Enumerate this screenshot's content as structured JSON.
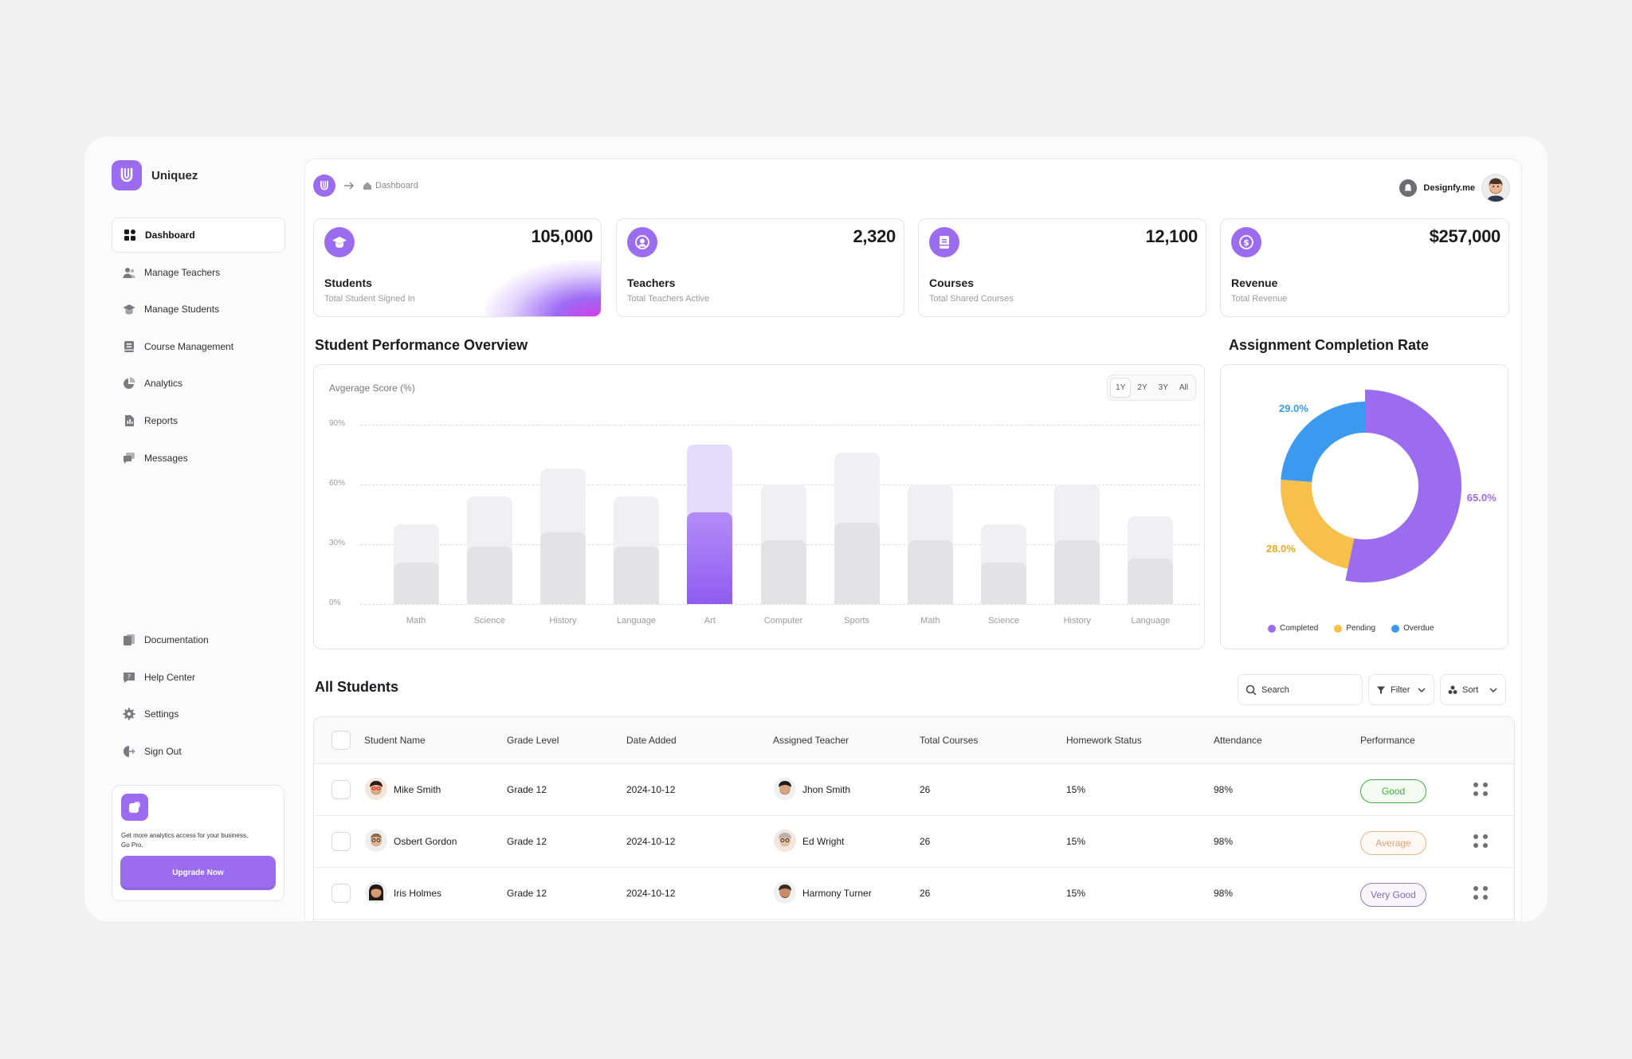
{
  "app": {
    "name": "Uniquez"
  },
  "sidebar": {
    "items": [
      {
        "label": "Dashboard",
        "icon": "dashboard-icon"
      },
      {
        "label": "Manage Teachers",
        "icon": "teachers-icon"
      },
      {
        "label": "Manage Students",
        "icon": "students-icon"
      },
      {
        "label": "Course Management",
        "icon": "course-icon"
      },
      {
        "label": "Analytics",
        "icon": "pie-chart-icon"
      },
      {
        "label": "Reports",
        "icon": "report-icon"
      },
      {
        "label": "Messages",
        "icon": "messages-icon"
      }
    ],
    "bottom_items": [
      {
        "label": "Documentation",
        "icon": "documentation-icon"
      },
      {
        "label": "Help Center",
        "icon": "help-icon"
      },
      {
        "label": "Settings",
        "icon": "gear-icon"
      },
      {
        "label": "Sign Out",
        "icon": "sign-out-icon"
      }
    ],
    "promo": {
      "text": "Get more analytics access for your business, Go Pro.",
      "button": "Upgrade Now"
    }
  },
  "header": {
    "breadcrumb": "Dashboard",
    "user_name": "Designfy.me"
  },
  "kpis": [
    {
      "value": "105,000",
      "label": "Students",
      "sub": "Total Student Signed In",
      "icon": "graduation-cap-icon"
    },
    {
      "value": "2,320",
      "label": "Teachers",
      "sub": "Total Teachers Active",
      "icon": "user-circle-icon"
    },
    {
      "value": "12,100",
      "label": "Courses",
      "sub": "Total Shared Courses",
      "icon": "book-icon"
    },
    {
      "value": "$257,000",
      "label": "Revenue",
      "sub": "Total Revenue",
      "icon": "dollar-icon"
    }
  ],
  "performance": {
    "title": "Student Performance Overview",
    "ranges": [
      "1Y",
      "2Y",
      "3Y",
      "All"
    ],
    "selected_range": "1Y"
  },
  "completion": {
    "title": "Assignment Completion Rate"
  },
  "chart_data": [
    {
      "type": "bar",
      "title": "Student Performance Overview",
      "ylabel": "Avgerage Score (%)",
      "ylim": [
        0,
        90
      ],
      "yticks": [
        "0%",
        "30%",
        "60%",
        "90%"
      ],
      "grid": true,
      "categories": [
        "Math",
        "Science",
        "History",
        "Language",
        "Art",
        "Computer",
        "Sports",
        "Math",
        "Science",
        "History",
        "Language"
      ],
      "series": [
        {
          "values": [
            40,
            54,
            68,
            54,
            80,
            60,
            76,
            60,
            40,
            60,
            44
          ]
        },
        {
          "values": [
            21,
            29,
            36,
            29,
            46,
            32,
            41,
            32,
            21,
            32,
            23
          ]
        }
      ],
      "highlighted_category_index": 4,
      "colors": {
        "highlight": "#9b6cf0",
        "highlight_light": "#e5dbfb",
        "bar": "#e3e3e6",
        "bar_light": "#f0f0f2"
      }
    },
    {
      "type": "pie",
      "title": "Assignment Completion Rate",
      "labels": [
        "Completed",
        "Pending",
        "Overdue"
      ],
      "values": [
        65.0,
        28.0,
        29.0
      ],
      "value_labels": [
        "65.0%",
        "28.0%",
        "29.0%"
      ],
      "colors": [
        "#9b6cf0",
        "#f7c04a",
        "#3b9af0"
      ],
      "legend_position": "bottom"
    }
  ],
  "students": {
    "title": "All Students",
    "search_placeholder": "Search",
    "filter_label": "Filter",
    "sort_label": "Sort",
    "columns": [
      "Student Name",
      "Grade Level",
      "Date Added",
      "Assigned Teacher",
      "Total Courses",
      "Homework Status",
      "Attendance",
      "Performance"
    ],
    "rows": [
      {
        "name": "Mike Smith",
        "grade": "Grade 12",
        "date": "2024-10-12",
        "teacher": "Jhon Smith",
        "courses": "26",
        "homework": "15%",
        "attendance": "98%",
        "performance": "Good",
        "perf_color": "#3fae3f"
      },
      {
        "name": "Osbert Gordon",
        "grade": "Grade 12",
        "date": "2024-10-12",
        "teacher": "Ed Wright",
        "courses": "26",
        "homework": "15%",
        "attendance": "98%",
        "performance": "Average",
        "perf_color": "#e0a273"
      },
      {
        "name": "Iris Holmes",
        "grade": "Grade 12",
        "date": "2024-10-12",
        "teacher": "Harmony Turner",
        "courses": "26",
        "homework": "15%",
        "attendance": "98%",
        "performance": "Very Good",
        "perf_color": "#7f6bb8"
      }
    ]
  }
}
